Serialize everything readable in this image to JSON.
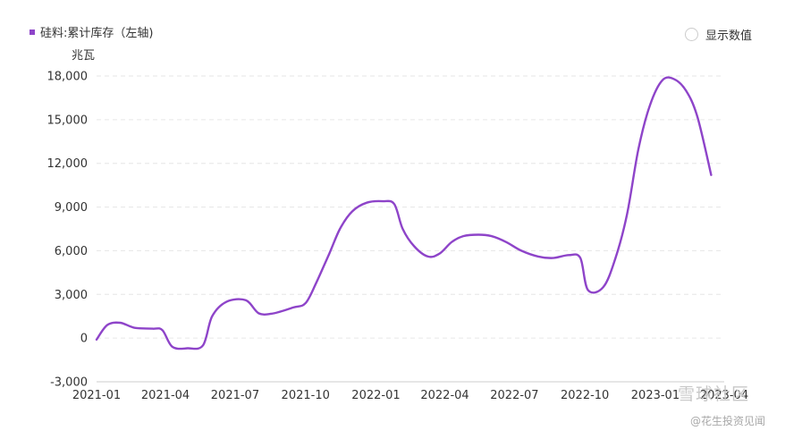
{
  "legend": {
    "label": "硅料:累计库存（左轴)",
    "color": "#8e44c9"
  },
  "toggle": {
    "label": "显示数值"
  },
  "y_unit": "兆瓦",
  "watermark": {
    "brand": "雪球社区",
    "sub": "@花生投资见闻"
  },
  "chart_data": {
    "type": "line",
    "x_ticks": [
      "2021-01",
      "2021-04",
      "2021-07",
      "2021-10",
      "2022-01",
      "2022-04",
      "2022-07",
      "2022-10",
      "2023-01",
      "2023-04"
    ],
    "y_ticks": [
      -3000,
      0,
      3000,
      6000,
      9000,
      12000,
      15000,
      18000
    ],
    "y_tick_labels": [
      "-3,000",
      "0",
      "3,000",
      "6,000",
      "9,000",
      "12,000",
      "15,000",
      "18,000"
    ],
    "ylim": [
      -3000,
      18000
    ],
    "grid": true,
    "series": [
      {
        "name": "硅料:累计库存（左轴)",
        "color": "#8e44c9",
        "points": [
          [
            "2021-01-01",
            -100
          ],
          [
            "2021-01-15",
            900
          ],
          [
            "2021-02-01",
            1050
          ],
          [
            "2021-02-20",
            700
          ],
          [
            "2021-03-15",
            650
          ],
          [
            "2021-03-28",
            550
          ],
          [
            "2021-04-10",
            -600
          ],
          [
            "2021-04-30",
            -700
          ],
          [
            "2021-05-20",
            -500
          ],
          [
            "2021-06-01",
            1500
          ],
          [
            "2021-06-20",
            2500
          ],
          [
            "2021-07-15",
            2600
          ],
          [
            "2021-08-01",
            1700
          ],
          [
            "2021-08-20",
            1700
          ],
          [
            "2021-09-15",
            2100
          ],
          [
            "2021-10-01",
            2400
          ],
          [
            "2021-10-15",
            3800
          ],
          [
            "2021-11-01",
            5800
          ],
          [
            "2021-11-15",
            7500
          ],
          [
            "2021-12-01",
            8700
          ],
          [
            "2021-12-20",
            9300
          ],
          [
            "2022-01-10",
            9400
          ],
          [
            "2022-01-25",
            9200
          ],
          [
            "2022-02-05",
            7500
          ],
          [
            "2022-02-20",
            6300
          ],
          [
            "2022-03-10",
            5600
          ],
          [
            "2022-03-25",
            5800
          ],
          [
            "2022-04-10",
            6600
          ],
          [
            "2022-04-25",
            7000
          ],
          [
            "2022-05-15",
            7100
          ],
          [
            "2022-06-01",
            7000
          ],
          [
            "2022-06-20",
            6600
          ],
          [
            "2022-07-10",
            6000
          ],
          [
            "2022-08-01",
            5600
          ],
          [
            "2022-08-20",
            5500
          ],
          [
            "2022-09-10",
            5700
          ],
          [
            "2022-09-25",
            5500
          ],
          [
            "2022-10-05",
            3300
          ],
          [
            "2022-10-25",
            3500
          ],
          [
            "2022-11-10",
            5500
          ],
          [
            "2022-11-25",
            8500
          ],
          [
            "2022-12-10",
            13000
          ],
          [
            "2022-12-25",
            16000
          ],
          [
            "2023-01-10",
            17700
          ],
          [
            "2023-01-25",
            17800
          ],
          [
            "2023-02-10",
            17000
          ],
          [
            "2023-02-25",
            15200
          ],
          [
            "2023-03-15",
            11200
          ]
        ]
      }
    ]
  }
}
